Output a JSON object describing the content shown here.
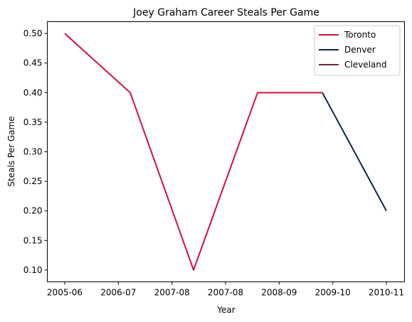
{
  "chart_data": {
    "type": "line",
    "title": "Joey Graham Career Steals Per Game",
    "xlabel": "Year",
    "ylabel": "Steals Per Game",
    "x_tick_labels": [
      "2005-06",
      "2006-07",
      "2007-08",
      "2007-08",
      "2008-09",
      "2009-10",
      "2010-11"
    ],
    "ylim": [
      0.08,
      0.52
    ],
    "y_ticks": [
      "0.10",
      "0.15",
      "0.20",
      "0.25",
      "0.30",
      "0.35",
      "0.40",
      "0.45",
      "0.50"
    ],
    "grid": false,
    "legend_position": "top-right",
    "series": [
      {
        "name": "Toronto",
        "color": "#CE1141",
        "x": [
          "2005-06",
          "2006-07",
          "2007-08",
          "2008-09",
          "2009-10"
        ],
        "values": [
          0.5,
          0.4,
          0.1,
          0.4,
          0.4
        ]
      },
      {
        "name": "Denver",
        "color": "#0E2240",
        "x": [
          "2009-10",
          "2010-11"
        ],
        "values": [
          0.4,
          0.2
        ]
      },
      {
        "name": "Cleveland",
        "color": "#6F263D",
        "x": [],
        "values": []
      }
    ]
  }
}
